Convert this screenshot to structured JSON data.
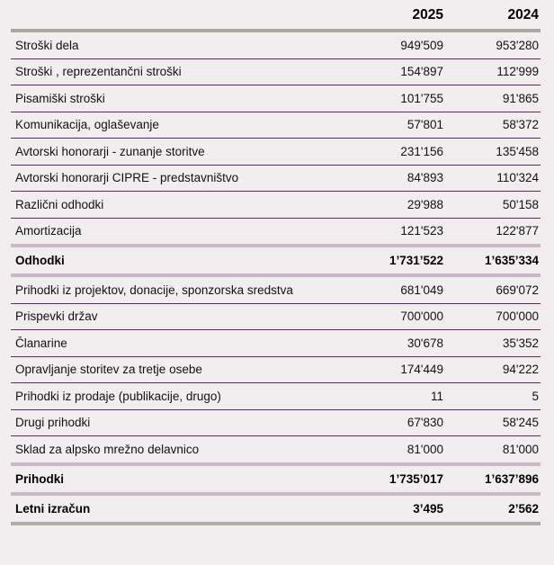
{
  "header": {
    "label": "",
    "col_2025": "2025",
    "col_2024": "2024"
  },
  "colors": {
    "background": "#f2eef0",
    "separator_purple": "#5e2b5a",
    "separator_mauve": "#ccb8c8",
    "separator_gray_top": "#aaa59e",
    "separator_gray_bottom": "#b1ada4",
    "text": "#111111"
  },
  "rows": [
    {
      "label": "Stroški dela",
      "y2025": "949'509",
      "y2024": "953'280"
    },
    {
      "label": "Stroški , reprezentančni stroški",
      "y2025": "154'897",
      "y2024": "112'999"
    },
    {
      "label": "Pisamiški stroški",
      "y2025": "101'755",
      "y2024": "91'865"
    },
    {
      "label": "Komunikacija, oglaševanje",
      "y2025": "57'801",
      "y2024": "58'372"
    },
    {
      "label": "Avtorski honorarji - zunanje storitve",
      "y2025": "231'156",
      "y2024": "135'458"
    },
    {
      "label": "Avtorski honorarji CIPRE - predstavništvo",
      "y2025": "84'893",
      "y2024": "110'324"
    },
    {
      "label": "Različni odhodki",
      "y2025": "29'988",
      "y2024": "50'158"
    },
    {
      "label": "Amortizacija",
      "y2025": "121'523",
      "y2024": "122'877"
    },
    {
      "label": "Odhodki",
      "y2025": "1’731’522",
      "y2024": "1’635’334"
    },
    {
      "label": "Prihodki iz projektov, donacije, sponzorska sredstva",
      "y2025": "681'049",
      "y2024": "669'072"
    },
    {
      "label": "Prispevki držav",
      "y2025": "700'000",
      "y2024": "700'000"
    },
    {
      "label": "Članarine",
      "y2025": "30'678",
      "y2024": "35'352"
    },
    {
      "label": "Opravljanje storitev za tretje osebe",
      "y2025": "174'449",
      "y2024": "94'222"
    },
    {
      "label": "Prihodki iz prodaje (publikacije, drugo)",
      "y2025": "11",
      "y2024": "5"
    },
    {
      "label": "Drugi prihodki",
      "y2025": "67'830",
      "y2024": "58'245"
    },
    {
      "label": "Sklad za alpsko mrežno delavnico",
      "y2025": "81'000",
      "y2024": "81'000"
    },
    {
      "label": "Prihodki",
      "y2025": "1’735’017",
      "y2024": "1’637’896"
    },
    {
      "label": "Letni izračun",
      "y2025": "3’495",
      "y2024": "2’562"
    }
  ]
}
